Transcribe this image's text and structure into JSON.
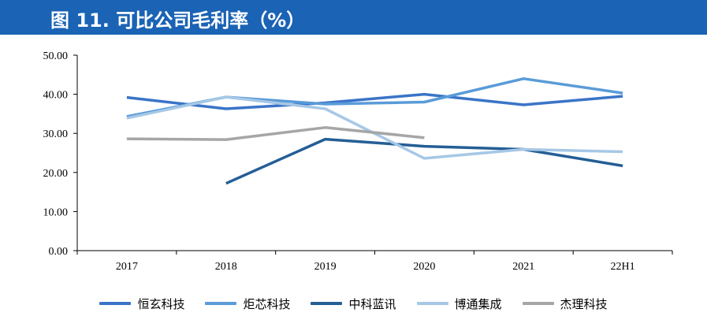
{
  "header": {
    "title": "图 11. 可比公司毛利率（%）"
  },
  "colors": {
    "title_bg": "#1a63b5"
  },
  "chart_data": {
    "type": "line",
    "title": "",
    "xlabel": "",
    "ylabel": "",
    "categories": [
      "2017",
      "2018",
      "2019",
      "2020",
      "2021",
      "22H1"
    ],
    "ylim": [
      0,
      50
    ],
    "yticks": [
      "0.00",
      "10.00",
      "20.00",
      "30.00",
      "40.00",
      "50.00"
    ],
    "series": [
      {
        "name": "恒玄科技",
        "color": "#3a74c8",
        "values": [
          39.2,
          36.3,
          37.8,
          40.0,
          37.3,
          39.5
        ]
      },
      {
        "name": "炬芯科技",
        "color": "#5a9bd8",
        "values": [
          34.3,
          39.3,
          37.5,
          38.0,
          44.0,
          40.3
        ]
      },
      {
        "name": "中科蓝讯",
        "color": "#245e95",
        "values": [
          null,
          17.2,
          28.5,
          26.7,
          25.9,
          21.7
        ]
      },
      {
        "name": "博通集成",
        "color": "#a6c8e6",
        "values": [
          33.9,
          39.3,
          36.3,
          23.6,
          25.9,
          25.3
        ]
      },
      {
        "name": "杰理科技",
        "color": "#a6a6a6",
        "values": [
          28.6,
          28.4,
          31.5,
          28.9,
          null,
          null
        ]
      }
    ],
    "legend_position": "bottom"
  }
}
